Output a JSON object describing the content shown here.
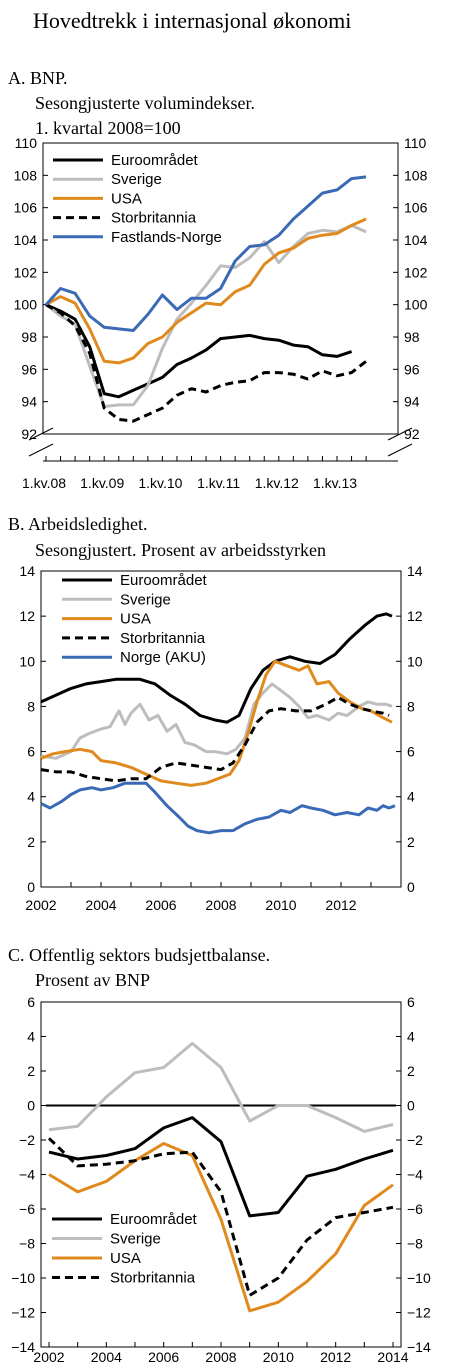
{
  "title": "Hovedtrekk i internasjonal økonomi",
  "colors": {
    "euro": "#000000",
    "sverige": "#bdbdbd",
    "usa": "#e08a1e",
    "uk": "#000000",
    "norge": "#3a6ab5"
  },
  "chart_data": [
    {
      "id": "A",
      "type": "line",
      "title": "A.  BNP.",
      "subtitle": [
        "Sesongjusterte volumindekser.",
        "1. kvartal  2008=100"
      ],
      "x_tick_labels": [
        "1.kv.08",
        "1.kv.09",
        "1.kv.10",
        "1.kv.11",
        "1.kv.12",
        "1.kv.13"
      ],
      "ylim": [
        92,
        110
      ],
      "y_ticks": [
        92,
        94,
        96,
        98,
        100,
        102,
        104,
        106,
        108,
        110
      ],
      "x_quarters": [
        "Q1 2008",
        "Q2 2008",
        "Q3 2008",
        "Q4 2008",
        "Q1 2009",
        "Q2 2009",
        "Q3 2009",
        "Q4 2009",
        "Q1 2010",
        "Q2 2010",
        "Q3 2010",
        "Q4 2010",
        "Q1 2011",
        "Q2 2011",
        "Q3 2011",
        "Q4 2011",
        "Q1 2012",
        "Q2 2012",
        "Q3 2012",
        "Q4 2012",
        "Q1 2013",
        "Q2 2013",
        "Q3 2013"
      ],
      "series": [
        {
          "name": "Euroområdet",
          "color": "#000000",
          "dash": false,
          "values": [
            100,
            99.6,
            99.1,
            97.4,
            94.5,
            94.3,
            94.7,
            95.1,
            95.5,
            96.3,
            96.7,
            97.2,
            97.9,
            98.0,
            98.1,
            97.9,
            97.8,
            97.5,
            97.4,
            96.9,
            96.8,
            97.1,
            null
          ]
        },
        {
          "name": "Sverige",
          "color": "#bdbdbd",
          "dash": false,
          "values": [
            100,
            99.3,
            98.8,
            96.2,
            93.7,
            93.8,
            93.8,
            95.0,
            97.3,
            99.1,
            100.1,
            101.2,
            102.4,
            102.3,
            102.9,
            103.9,
            102.6,
            103.6,
            104.4,
            104.6,
            104.5,
            104.9,
            104.5
          ]
        },
        {
          "name": "USA",
          "color": "#e08a1e",
          "dash": false,
          "values": [
            100,
            100.5,
            100.1,
            98.5,
            96.5,
            96.4,
            96.7,
            97.6,
            98.0,
            98.9,
            99.5,
            100.1,
            100.0,
            100.8,
            101.2,
            102.5,
            103.2,
            103.5,
            104.1,
            104.3,
            104.4,
            104.9,
            105.3
          ]
        },
        {
          "name": "Storbritannia",
          "color": "#000000",
          "dash": true,
          "values": [
            100,
            99.5,
            98.7,
            97.0,
            93.6,
            92.9,
            92.8,
            93.2,
            93.6,
            94.4,
            94.8,
            94.6,
            95.0,
            95.2,
            95.3,
            95.8,
            95.8,
            95.7,
            95.4,
            95.9,
            95.6,
            95.8,
            96.5
          ]
        },
        {
          "name": "Fastlands-Norge",
          "color": "#3a6ab5",
          "dash": false,
          "values": [
            100,
            101.0,
            100.7,
            99.3,
            98.6,
            98.5,
            98.4,
            99.4,
            100.6,
            99.7,
            100.4,
            100.4,
            101.0,
            102.7,
            103.6,
            103.7,
            104.3,
            105.3,
            106.1,
            106.9,
            107.1,
            107.8,
            107.9
          ]
        }
      ]
    },
    {
      "id": "B",
      "type": "line",
      "title": "B.  Arbeidsledighet.",
      "subtitle": [
        "Sesongjustert. Prosent av arbeidsstyrken"
      ],
      "x_tick_labels": [
        "2002",
        "2004",
        "2006",
        "2008",
        "2010",
        "2012"
      ],
      "xlim": [
        2002,
        2014
      ],
      "ylim": [
        0,
        14
      ],
      "y_ticks": [
        0,
        2,
        4,
        6,
        8,
        10,
        12,
        14
      ],
      "series": [
        {
          "name": "Euroområdet",
          "color": "#000000",
          "dash": false,
          "points": [
            [
              2002,
              8.2
            ],
            [
              2002.5,
              8.5
            ],
            [
              2003,
              8.8
            ],
            [
              2003.5,
              9.0
            ],
            [
              2004,
              9.1
            ],
            [
              2004.5,
              9.2
            ],
            [
              2005,
              9.2
            ],
            [
              2005.3,
              9.2
            ],
            [
              2005.8,
              9.0
            ],
            [
              2006.3,
              8.5
            ],
            [
              2006.8,
              8.1
            ],
            [
              2007.3,
              7.6
            ],
            [
              2007.8,
              7.4
            ],
            [
              2008.2,
              7.3
            ],
            [
              2008.6,
              7.6
            ],
            [
              2009,
              8.8
            ],
            [
              2009.4,
              9.6
            ],
            [
              2009.8,
              10.0
            ],
            [
              2010.3,
              10.2
            ],
            [
              2010.8,
              10.0
            ],
            [
              2011.3,
              9.9
            ],
            [
              2011.8,
              10.3
            ],
            [
              2012.3,
              11.0
            ],
            [
              2012.8,
              11.6
            ],
            [
              2013.2,
              12.0
            ],
            [
              2013.5,
              12.1
            ],
            [
              2013.7,
              12.0
            ]
          ]
        },
        {
          "name": "Sverige",
          "color": "#bdbdbd",
          "dash": false,
          "points": [
            [
              2002,
              5.8
            ],
            [
              2002.5,
              5.7
            ],
            [
              2003,
              6.0
            ],
            [
              2003.3,
              6.6
            ],
            [
              2003.6,
              6.8
            ],
            [
              2004,
              7.0
            ],
            [
              2004.3,
              7.1
            ],
            [
              2004.6,
              7.8
            ],
            [
              2004.8,
              7.2
            ],
            [
              2005,
              7.7
            ],
            [
              2005.3,
              8.1
            ],
            [
              2005.6,
              7.4
            ],
            [
              2005.9,
              7.6
            ],
            [
              2006.2,
              6.9
            ],
            [
              2006.5,
              7.2
            ],
            [
              2006.8,
              6.4
            ],
            [
              2007.1,
              6.3
            ],
            [
              2007.5,
              6.0
            ],
            [
              2007.8,
              6.0
            ],
            [
              2008.2,
              5.9
            ],
            [
              2008.5,
              6.1
            ],
            [
              2008.8,
              6.6
            ],
            [
              2009.1,
              8.1
            ],
            [
              2009.4,
              8.6
            ],
            [
              2009.7,
              9.0
            ],
            [
              2010,
              8.7
            ],
            [
              2010.3,
              8.4
            ],
            [
              2010.6,
              8.0
            ],
            [
              2010.9,
              7.5
            ],
            [
              2011.2,
              7.6
            ],
            [
              2011.6,
              7.4
            ],
            [
              2011.9,
              7.7
            ],
            [
              2012.2,
              7.6
            ],
            [
              2012.6,
              8.0
            ],
            [
              2012.9,
              8.2
            ],
            [
              2013.2,
              8.1
            ],
            [
              2013.5,
              8.1
            ],
            [
              2013.7,
              8.0
            ]
          ]
        },
        {
          "name": "USA",
          "color": "#e08a1e",
          "dash": false,
          "points": [
            [
              2002,
              5.7
            ],
            [
              2002.4,
              5.9
            ],
            [
              2002.8,
              6.0
            ],
            [
              2003.3,
              6.1
            ],
            [
              2003.7,
              6.0
            ],
            [
              2004,
              5.6
            ],
            [
              2004.5,
              5.5
            ],
            [
              2005,
              5.3
            ],
            [
              2005.5,
              5.0
            ],
            [
              2006,
              4.7
            ],
            [
              2006.5,
              4.6
            ],
            [
              2007,
              4.5
            ],
            [
              2007.5,
              4.6
            ],
            [
              2007.9,
              4.8
            ],
            [
              2008.3,
              5.0
            ],
            [
              2008.6,
              5.6
            ],
            [
              2008.9,
              6.8
            ],
            [
              2009.2,
              8.2
            ],
            [
              2009.5,
              9.4
            ],
            [
              2009.8,
              10.0
            ],
            [
              2010.2,
              9.8
            ],
            [
              2010.6,
              9.6
            ],
            [
              2010.9,
              9.8
            ],
            [
              2011.2,
              9.0
            ],
            [
              2011.6,
              9.1
            ],
            [
              2011.9,
              8.6
            ],
            [
              2012.3,
              8.2
            ],
            [
              2012.7,
              7.9
            ],
            [
              2013,
              7.8
            ],
            [
              2013.4,
              7.5
            ],
            [
              2013.7,
              7.3
            ]
          ]
        },
        {
          "name": "Storbritannia",
          "color": "#000000",
          "dash": true,
          "points": [
            [
              2002,
              5.2
            ],
            [
              2002.5,
              5.1
            ],
            [
              2003,
              5.1
            ],
            [
              2003.5,
              4.9
            ],
            [
              2004,
              4.8
            ],
            [
              2004.5,
              4.7
            ],
            [
              2005,
              4.8
            ],
            [
              2005.5,
              4.8
            ],
            [
              2006,
              5.3
            ],
            [
              2006.5,
              5.5
            ],
            [
              2007,
              5.4
            ],
            [
              2007.5,
              5.3
            ],
            [
              2008,
              5.2
            ],
            [
              2008.4,
              5.5
            ],
            [
              2008.8,
              6.3
            ],
            [
              2009.2,
              7.3
            ],
            [
              2009.6,
              7.8
            ],
            [
              2010,
              7.9
            ],
            [
              2010.5,
              7.8
            ],
            [
              2011,
              7.8
            ],
            [
              2011.5,
              8.1
            ],
            [
              2011.9,
              8.4
            ],
            [
              2012.3,
              8.1
            ],
            [
              2012.7,
              7.9
            ],
            [
              2013,
              7.8
            ],
            [
              2013.4,
              7.7
            ],
            [
              2013.6,
              7.6
            ]
          ]
        },
        {
          "name": "Norge (AKU)",
          "color": "#3a6ab5",
          "dash": false,
          "points": [
            [
              2002,
              3.7
            ],
            [
              2002.3,
              3.5
            ],
            [
              2002.7,
              3.8
            ],
            [
              2003,
              4.1
            ],
            [
              2003.3,
              4.3
            ],
            [
              2003.7,
              4.4
            ],
            [
              2004,
              4.3
            ],
            [
              2004.4,
              4.4
            ],
            [
              2004.8,
              4.6
            ],
            [
              2005.2,
              4.6
            ],
            [
              2005.5,
              4.6
            ],
            [
              2005.8,
              4.2
            ],
            [
              2006.2,
              3.6
            ],
            [
              2006.6,
              3.1
            ],
            [
              2006.9,
              2.7
            ],
            [
              2007.2,
              2.5
            ],
            [
              2007.6,
              2.4
            ],
            [
              2008,
              2.5
            ],
            [
              2008.4,
              2.5
            ],
            [
              2008.8,
              2.8
            ],
            [
              2009.2,
              3.0
            ],
            [
              2009.6,
              3.1
            ],
            [
              2010,
              3.4
            ],
            [
              2010.3,
              3.3
            ],
            [
              2010.7,
              3.6
            ],
            [
              2011,
              3.5
            ],
            [
              2011.4,
              3.4
            ],
            [
              2011.8,
              3.2
            ],
            [
              2012.2,
              3.3
            ],
            [
              2012.6,
              3.2
            ],
            [
              2012.9,
              3.5
            ],
            [
              2013.2,
              3.4
            ],
            [
              2013.4,
              3.6
            ],
            [
              2013.6,
              3.5
            ],
            [
              2013.8,
              3.6
            ]
          ]
        }
      ]
    },
    {
      "id": "C",
      "type": "line",
      "title": "C.  Offentlig sektors budsjettbalanse.",
      "subtitle": [
        "Prosent av BNP"
      ],
      "x_tick_labels": [
        "2002",
        "2004",
        "2006",
        "2008",
        "2010",
        "2012",
        "2014"
      ],
      "x": [
        2002,
        2003,
        2004,
        2005,
        2006,
        2007,
        2008,
        2009,
        2010,
        2011,
        2012,
        2013,
        2014
      ],
      "xlim": [
        2002,
        2014
      ],
      "ylim": [
        -14,
        6
      ],
      "y_ticks": [
        -14,
        -12,
        -10,
        -8,
        -6,
        -4,
        -2,
        0,
        2,
        4,
        6
      ],
      "series": [
        {
          "name": "Euroområdet",
          "color": "#000000",
          "dash": false,
          "values": [
            -2.7,
            -3.1,
            -2.9,
            -2.5,
            -1.3,
            -0.7,
            -2.1,
            -6.4,
            -6.2,
            -4.1,
            -3.7,
            -3.1,
            -2.6
          ]
        },
        {
          "name": "Sverige",
          "color": "#bdbdbd",
          "dash": false,
          "values": [
            -1.4,
            -1.2,
            0.5,
            1.9,
            2.2,
            3.6,
            2.2,
            -0.9,
            0.0,
            0.0,
            -0.7,
            -1.5,
            -1.1
          ]
        },
        {
          "name": "USA",
          "color": "#e08a1e",
          "dash": false,
          "values": [
            -4.0,
            -5.0,
            -4.4,
            -3.2,
            -2.2,
            -2.9,
            -6.6,
            -11.9,
            -11.4,
            -10.2,
            -8.6,
            -5.8,
            -4.6
          ]
        },
        {
          "name": "Storbritannia",
          "color": "#000000",
          "dash": true,
          "values": [
            -1.9,
            -3.5,
            -3.4,
            -3.2,
            -2.8,
            -2.7,
            -5.0,
            -11.0,
            -10.0,
            -7.8,
            -6.5,
            -6.2,
            -5.9
          ]
        }
      ]
    }
  ]
}
